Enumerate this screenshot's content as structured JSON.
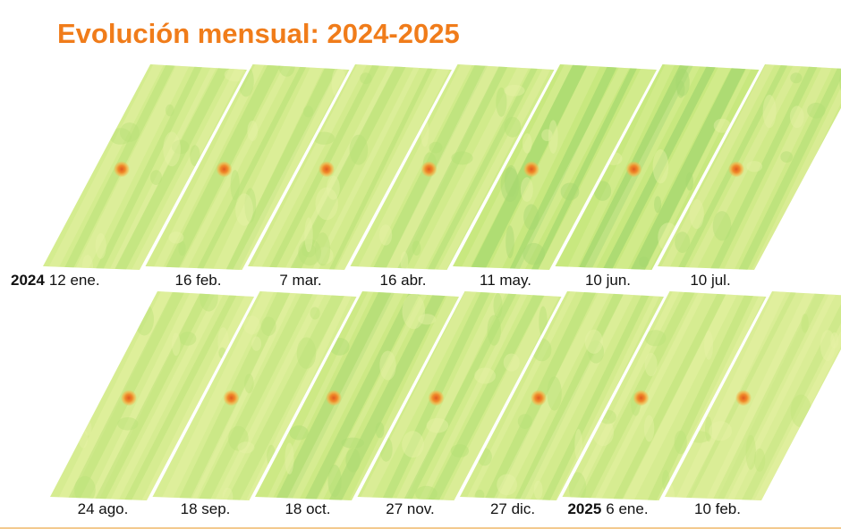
{
  "title": "Evolución mensual: 2024-2025",
  "colors": {
    "title": "#f07c1a",
    "field_base": "#c8e87f",
    "field_dark": "#9bd36b",
    "field_light": "#e6f1a6",
    "hotspot_core": "#e05a1e",
    "hotspot_ring": "#f5b24a",
    "bottom_rule": "#f3c98e"
  },
  "rows": [
    {
      "tiles": [
        {
          "year": "2024",
          "date": "12 ene.",
          "green_level": 0.35
        },
        {
          "year": "",
          "date": "16 feb.",
          "green_level": 0.4
        },
        {
          "year": "",
          "date": "7 mar.",
          "green_level": 0.38
        },
        {
          "year": "",
          "date": "16 abr.",
          "green_level": 0.45
        },
        {
          "year": "",
          "date": "11 may.",
          "green_level": 0.75
        },
        {
          "year": "",
          "date": "10 jun.",
          "green_level": 0.8
        },
        {
          "year": "",
          "date": "10 jul.",
          "green_level": 0.5
        }
      ]
    },
    {
      "tiles": [
        {
          "year": "",
          "date": "24 ago.",
          "green_level": 0.3
        },
        {
          "year": "",
          "date": "18 sep.",
          "green_level": 0.25
        },
        {
          "year": "",
          "date": "18 oct.",
          "green_level": 0.6
        },
        {
          "year": "",
          "date": "27 nov.",
          "green_level": 0.45
        },
        {
          "year": "",
          "date": "27 dic.",
          "green_level": 0.4
        },
        {
          "year": "2025",
          "date": "6 ene.",
          "green_level": 0.3
        },
        {
          "year": "",
          "date": "10 feb.",
          "green_level": 0.15
        }
      ]
    }
  ]
}
